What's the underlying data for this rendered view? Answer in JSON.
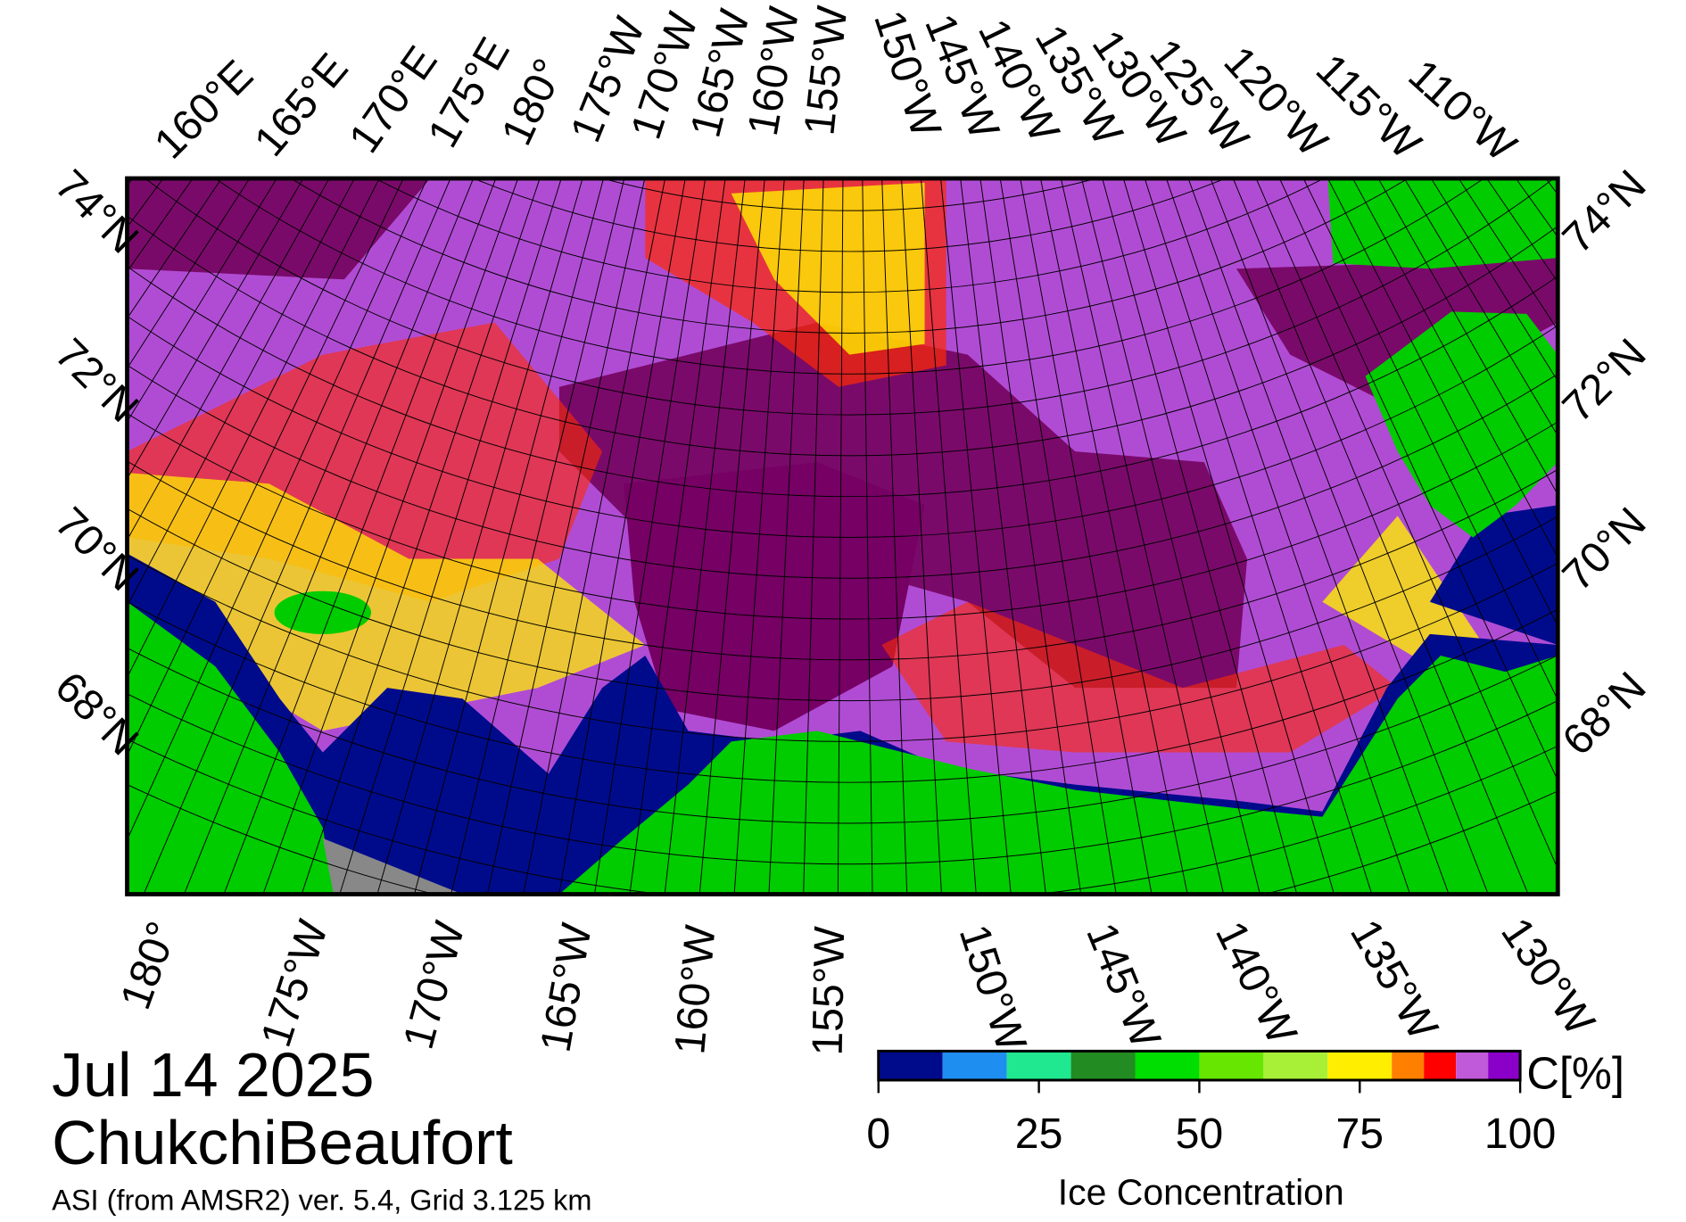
{
  "map": {
    "top_labels": [
      "160°E",
      "165°E",
      "170°E",
      "175°E",
      "180°",
      "175°W",
      "170°W",
      "165°W",
      "160°W",
      "155°W",
      "150°W",
      "145°W",
      "140°W",
      "135°W",
      "130°W",
      "125°W",
      "120°W",
      "115°W",
      "110°W"
    ],
    "bottom_labels": [
      "180°",
      "175°W",
      "170°W",
      "165°W",
      "160°W",
      "155°W",
      "150°W",
      "145°W",
      "140°W",
      "135°W",
      "130°W"
    ],
    "left_labels": [
      "74°N",
      "72°N",
      "70°N",
      "68°N"
    ],
    "right_labels": [
      "74°N",
      "72°N",
      "70°N",
      "68°N"
    ]
  },
  "date": "Jul 14 2025",
  "region": "ChukchiBeaufort",
  "source": "ASI (from AMSR2) ver. 5.4,  Grid 3.125 km",
  "colorbar": {
    "title": "Ice Concentration",
    "unit": "C[%]",
    "lim": [
      0,
      100
    ],
    "ticks": [
      0,
      25,
      50,
      75,
      100
    ],
    "bins": [
      0,
      10,
      20,
      30,
      40,
      50,
      60,
      70,
      80,
      85,
      90,
      95,
      100
    ],
    "colors": [
      "#000b8c",
      "#1e8ef0",
      "#20e890",
      "#228b22",
      "#00dd00",
      "#66e600",
      "#a8f038",
      "#ffee00",
      "#ff7f00",
      "#ff0000",
      "#c05ad8",
      "#8a00c8"
    ]
  }
}
